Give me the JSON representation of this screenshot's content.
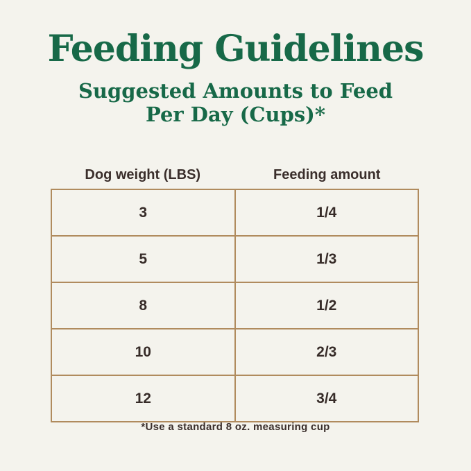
{
  "colors": {
    "background": "#f4f3ed",
    "title_green": "#176948",
    "text_dark": "#362b28",
    "table_border": "#b08b5e"
  },
  "header": {
    "subtitle_line1": "Suggested Amounts to Feed",
    "subtitle_line2": "Per Day (Cups)*"
  },
  "chart_data": {
    "type": "table",
    "title": "Feeding Guidelines",
    "subtitle": "Suggested Amounts to Feed Per Day (Cups)*",
    "columns": [
      "Dog weight (LBS)",
      "Feeding amount"
    ],
    "rows": [
      [
        "3",
        "1/4"
      ],
      [
        "5",
        "1/3"
      ],
      [
        "8",
        "1/2"
      ],
      [
        "10",
        "2/3"
      ],
      [
        "12",
        "3/4"
      ]
    ],
    "footnote": "*Use a standard 8 oz. measuring cup"
  }
}
